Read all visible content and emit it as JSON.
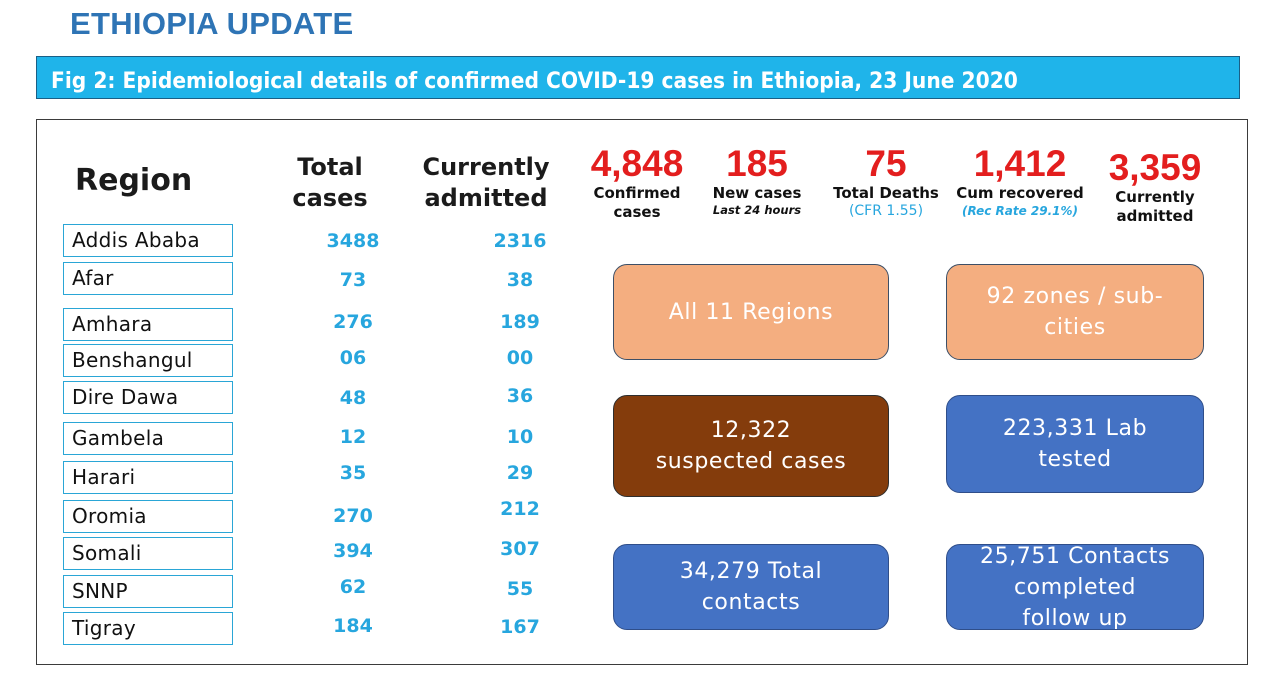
{
  "title": "ETHIOPIA UPDATE",
  "figure_caption": "Fig 2: Epidemiological details of confirmed COVID-19 cases in Ethiopia, 23 June 2020",
  "table": {
    "headers": {
      "region": "Region",
      "total_cases": "Total cases",
      "currently_admitted": "Currently admitted"
    },
    "rows": [
      {
        "region": "Addis Ababa",
        "total": "3488",
        "admitted": "2316"
      },
      {
        "region": "Afar",
        "total": "73",
        "admitted": "38"
      },
      {
        "region": "Amhara",
        "total": "276",
        "admitted": "189"
      },
      {
        "region": "Benshangul",
        "total": "06",
        "admitted": "00"
      },
      {
        "region": "Dire Dawa",
        "total": "48",
        "admitted": "36"
      },
      {
        "region": "Gambela",
        "total": "12",
        "admitted": "10"
      },
      {
        "region": "Harari",
        "total": "35",
        "admitted": "29"
      },
      {
        "region": "Oromia",
        "total": "270",
        "admitted": "212"
      },
      {
        "region": "Somali",
        "total": "394",
        "admitted": "307"
      },
      {
        "region": "SNNP",
        "total": "62",
        "admitted": "55"
      },
      {
        "region": "Tigray",
        "total": "184",
        "admitted": "167"
      }
    ]
  },
  "stats": {
    "confirmed": {
      "value": "4,848",
      "label_1": "Confirmed",
      "label_2": "cases"
    },
    "new_cases": {
      "value": "185",
      "label": "New cases",
      "sub": "Last 24 hours"
    },
    "deaths": {
      "value": "75",
      "label": "Total Deaths",
      "sub": "(CFR 1.55)"
    },
    "recovered": {
      "value": "1,412",
      "label": "Cum recovered",
      "sub": "(Rec Rate 29.1%)"
    },
    "admitted": {
      "value": "3,359",
      "label_1": "Currently",
      "label_2": "admitted"
    }
  },
  "tiles": {
    "regions": {
      "line_1": "All 11 Regions"
    },
    "zones": {
      "line_1": "92 zones / sub-",
      "line_2": "cities"
    },
    "suspected": {
      "line_1": "12,322",
      "line_2": "suspected cases"
    },
    "lab": {
      "line_1": "223,331 Lab",
      "line_2": "tested"
    },
    "contacts": {
      "line_1": "34,279 Total",
      "line_2": "contacts"
    },
    "followup": {
      "line_1": "25,751 Contacts",
      "line_2": "completed",
      "line_3": "follow up"
    }
  },
  "colors": {
    "title_blue": "#2e74b5",
    "banner_cyan": "#1fb4ea",
    "number_cyan": "#27a6de",
    "stat_red": "#e31e1e",
    "tile_peach": "#f4ae80",
    "tile_brown": "#843c0c",
    "tile_blue": "#4472c4"
  }
}
